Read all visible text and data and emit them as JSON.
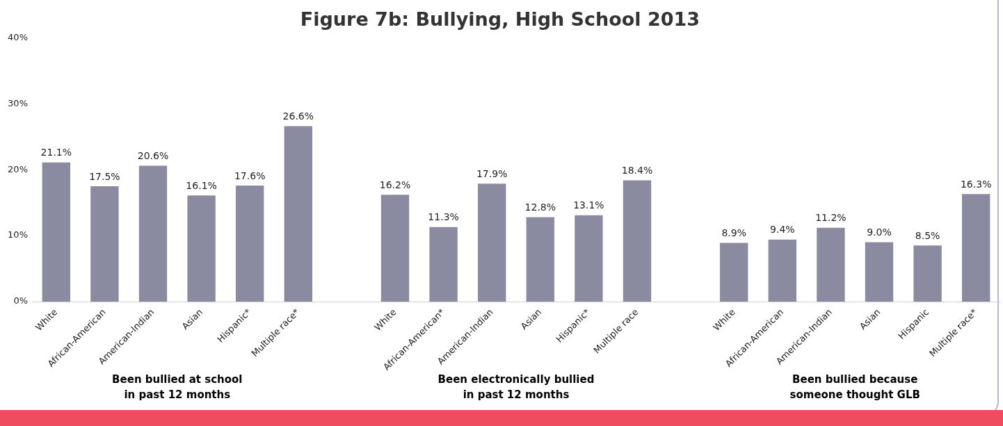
{
  "chart_data": {
    "type": "bar",
    "title": "Figure 7b: Bullying, High School 2013",
    "categories": [
      "White",
      "African-American",
      "American-Indian",
      "Asian",
      "Hispanic*",
      "Multiple race*",
      null,
      "White",
      "African-American*",
      "American-Indian",
      "Asian",
      "Hispanic*",
      "Multiple race",
      null,
      "White",
      "African-American",
      "American-Indian",
      "Asian",
      "Hispanic",
      "Multiple race*"
    ],
    "values": [
      21.1,
      17.5,
      20.6,
      16.1,
      17.6,
      26.6,
      null,
      16.2,
      11.3,
      17.9,
      12.8,
      13.1,
      18.4,
      null,
      8.9,
      9.4,
      11.2,
      9.0,
      8.5,
      16.3
    ],
    "value_labels": [
      "21.1%",
      "17.5%",
      "20.6%",
      "16.1%",
      "17.6%",
      "26.6%",
      null,
      "16.2%",
      "11.3%",
      "17.9%",
      "12.8%",
      "13.1%",
      "18.4%",
      null,
      "8.9%",
      "9.4%",
      "11.2%",
      "9.0%",
      "8.5%",
      "16.3%"
    ],
    "color": "#8a8aa0",
    "ylim": [
      0,
      40
    ],
    "yticks": [
      {
        "value": 0,
        "label": "0%"
      },
      {
        "value": 10,
        "label": "10%"
      },
      {
        "value": 20,
        "label": "20%"
      },
      {
        "value": 30,
        "label": "30%"
      },
      {
        "value": 40,
        "label": "40%"
      }
    ],
    "grid": false,
    "legend": false,
    "annotations": [
      "Been bullied at school\nin past 12 months",
      "Been electronically bullied\nin past 12 months",
      "Been bullied because\nsomeone thought GLB"
    ]
  }
}
